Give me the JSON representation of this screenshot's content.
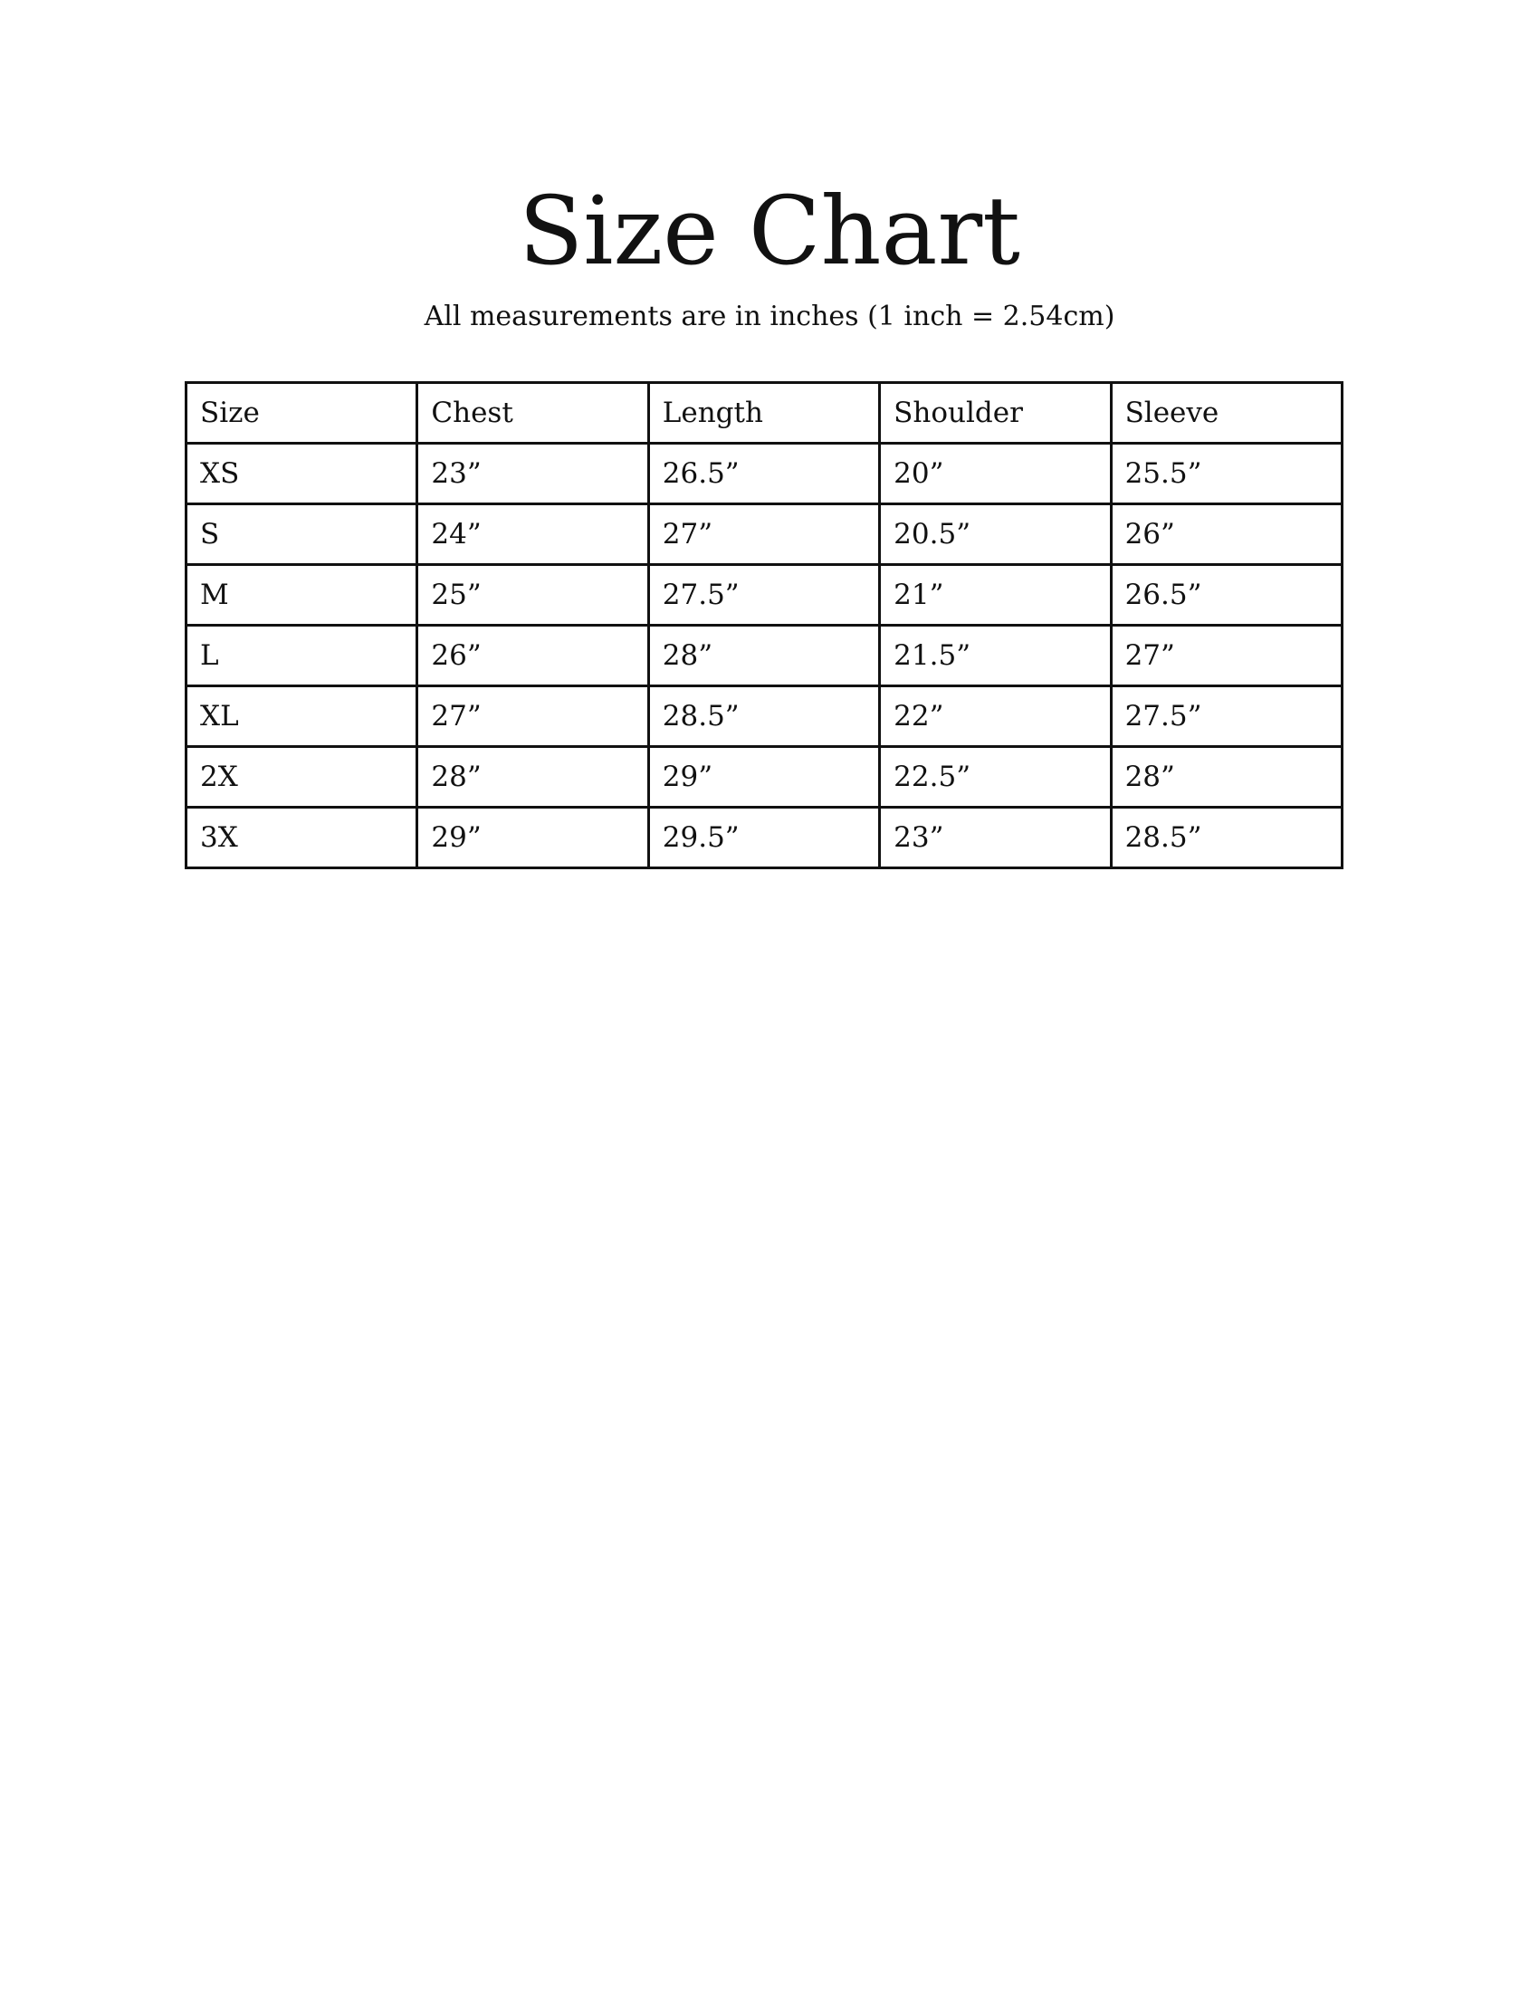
{
  "title": "Size Chart",
  "subtitle": "All measurements are in inches (1 inch = 2.54cm)",
  "table": {
    "headers": [
      "Size",
      "Chest",
      "Length",
      "Shoulder",
      "Sleeve"
    ],
    "rows": [
      [
        "XS",
        "23”",
        "26.5”",
        "20”",
        "25.5”"
      ],
      [
        "S",
        "24”",
        "27”",
        "20.5”",
        "26”"
      ],
      [
        "M",
        "25”",
        "27.5”",
        "21”",
        "26.5”"
      ],
      [
        "L",
        "26”",
        "28”",
        "21.5”",
        "27”"
      ],
      [
        "XL",
        "27”",
        "28.5”",
        "22”",
        "27.5”"
      ],
      [
        "2X",
        "28”",
        "29”",
        "22.5”",
        "28”"
      ],
      [
        "3X",
        "29”",
        "29.5”",
        "23”",
        "28.5”"
      ]
    ]
  }
}
